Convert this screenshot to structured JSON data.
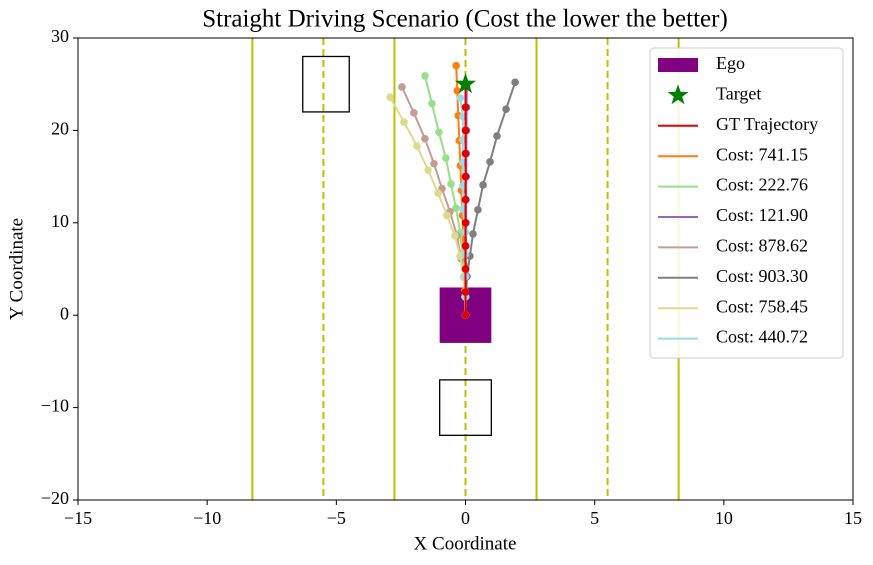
{
  "chart_data": {
    "type": "trajectory",
    "title": "Straight Driving Scenario (Cost the lower the better)",
    "x_label": "X Coordinate",
    "y_label": "Y Coordinate",
    "xlim": [
      -15,
      15
    ],
    "ylim": [
      -20,
      30
    ],
    "xticks": [
      {
        "value": -15,
        "label": "−15"
      },
      {
        "value": -10,
        "label": "−10"
      },
      {
        "value": -5,
        "label": "−5"
      },
      0,
      5,
      10,
      15
    ],
    "yticks": [
      {
        "value": -20,
        "label": "−20"
      },
      {
        "value": -10,
        "label": "−10"
      },
      0,
      10,
      20,
      30
    ],
    "lane_color": "#bfbf00",
    "lane_lines": [
      {
        "x": -8.25,
        "style": "solid"
      },
      {
        "x": -5.5,
        "style": "dashed"
      },
      {
        "x": -2.75,
        "style": "solid"
      },
      {
        "x": 0,
        "style": "dashed"
      },
      {
        "x": 2.75,
        "style": "solid"
      },
      {
        "x": 5.5,
        "style": "dashed"
      },
      {
        "x": 8.25,
        "style": "solid"
      }
    ],
    "obstacles": [
      {
        "x": [
          -6.3,
          -4.5
        ],
        "y": [
          22,
          28
        ]
      },
      {
        "x": [
          -1,
          1
        ],
        "y": [
          -13,
          -7
        ]
      }
    ],
    "ego": {
      "name": "Ego",
      "color": "#800080",
      "x": [
        -1,
        1
      ],
      "y": [
        -3,
        3
      ]
    },
    "target": {
      "name": "Target",
      "color": "#008000",
      "x": 0,
      "y": 25
    },
    "series": [
      {
        "name": "GT Trajectory",
        "color": "#e00000",
        "x": [
          0,
          0,
          0,
          0,
          0,
          0,
          0,
          0,
          0,
          0,
          0
        ],
        "y": [
          0,
          2.5,
          5,
          7.5,
          10,
          12.5,
          15,
          17.5,
          20,
          22.5,
          25
        ]
      },
      {
        "name": "Cost: 741.15",
        "color": "#ff7f0e",
        "x": [
          0,
          -0.02,
          -0.05,
          -0.08,
          -0.12,
          -0.16,
          -0.2,
          -0.24,
          -0.28,
          -0.32,
          -0.36
        ],
        "y": [
          0,
          2.7,
          5.4,
          8.1,
          10.8,
          13.5,
          16.2,
          18.9,
          21.6,
          24.3,
          27
        ]
      },
      {
        "name": "Cost: 222.76",
        "color": "#98df8a",
        "x": [
          0,
          -0.02,
          -0.05,
          -0.1,
          -0.2,
          -0.37,
          -0.56,
          -0.76,
          -1.03,
          -1.3,
          -1.57
        ],
        "y": [
          0,
          2,
          4.2,
          6.3,
          8.9,
          11.6,
          14.2,
          17,
          19.8,
          22.9,
          25.9
        ]
      },
      {
        "name": "Cost: 121.90",
        "color": "#9467bd",
        "x": [
          0,
          0,
          0.01,
          0.01,
          0.02,
          0.02,
          0.03,
          0.03,
          0.04,
          0.04,
          0.05
        ],
        "y": [
          0,
          2.5,
          5,
          7.5,
          10,
          12.5,
          15,
          17.5,
          20,
          22.5,
          25
        ]
      },
      {
        "name": "Cost: 878.62",
        "color": "#c49c94",
        "x": [
          0,
          -0.02,
          -0.06,
          -0.17,
          -0.33,
          -0.6,
          -0.91,
          -1.22,
          -1.57,
          -2.0,
          -2.46
        ],
        "y": [
          0,
          2,
          4.1,
          6.1,
          8.6,
          11.2,
          13.7,
          16.4,
          19.1,
          21.9,
          24.7
        ]
      },
      {
        "name": "Cost: 903.30",
        "color": "#7f7f7f",
        "x": [
          0,
          0.02,
          0.06,
          0.17,
          0.29,
          0.48,
          0.68,
          0.95,
          1.22,
          1.57,
          1.92
        ],
        "y": [
          0,
          2,
          4.2,
          6.4,
          8.8,
          11.4,
          14.1,
          16.6,
          19.4,
          22.3,
          25.2
        ]
      },
      {
        "name": "Cost: 758.45",
        "color": "#dbdb8d",
        "x": [
          0,
          -0.02,
          -0.07,
          -0.21,
          -0.41,
          -0.72,
          -1.06,
          -1.45,
          -1.88,
          -2.38,
          -2.92
        ],
        "y": [
          0,
          2,
          4.2,
          6.4,
          8.6,
          10.8,
          13.2,
          15.7,
          18.3,
          20.9,
          23.6
        ]
      },
      {
        "name": "Cost: 440.72",
        "color": "#9edae5",
        "x": [
          0,
          0,
          0,
          0,
          0,
          -0.1,
          -0.1,
          -0.1,
          -0.1,
          -0.1,
          -0.2
        ],
        "y": [
          0,
          2,
          4.2,
          6.6,
          9,
          11.5,
          14,
          16.5,
          19,
          21.5,
          23.5
        ]
      }
    ],
    "legend": "upper right"
  }
}
